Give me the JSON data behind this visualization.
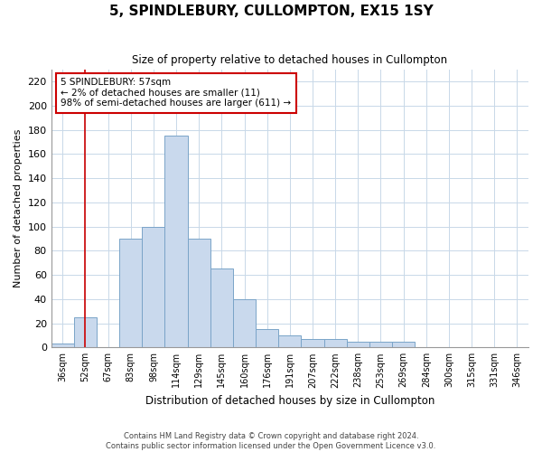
{
  "title": "5, SPINDLEBURY, CULLOMPTON, EX15 1SY",
  "subtitle": "Size of property relative to detached houses in Cullompton",
  "xlabel": "Distribution of detached houses by size in Cullompton",
  "ylabel": "Number of detached properties",
  "categories": [
    "36sqm",
    "52sqm",
    "67sqm",
    "83sqm",
    "98sqm",
    "114sqm",
    "129sqm",
    "145sqm",
    "160sqm",
    "176sqm",
    "191sqm",
    "207sqm",
    "222sqm",
    "238sqm",
    "253sqm",
    "269sqm",
    "284sqm",
    "300sqm",
    "315sqm",
    "331sqm",
    "346sqm"
  ],
  "values": [
    3,
    25,
    0,
    90,
    100,
    175,
    90,
    65,
    40,
    15,
    10,
    7,
    7,
    5,
    5,
    5,
    0,
    0,
    0,
    0,
    0
  ],
  "bar_color": "#c9d9ed",
  "bar_edge_color": "#7aa4c8",
  "highlight_index": 1,
  "highlight_color": "#cc0000",
  "ylim": [
    0,
    230
  ],
  "yticks": [
    0,
    20,
    40,
    60,
    80,
    100,
    120,
    140,
    160,
    180,
    200,
    220
  ],
  "annotation_box_text": "5 SPINDLEBURY: 57sqm\n← 2% of detached houses are smaller (11)\n98% of semi-detached houses are larger (611) →",
  "annotation_box_color": "#cc0000",
  "footer_text": "Contains HM Land Registry data © Crown copyright and database right 2024.\nContains public sector information licensed under the Open Government Licence v3.0.",
  "bg_color": "#ffffff",
  "grid_color": "#c8d8e8"
}
